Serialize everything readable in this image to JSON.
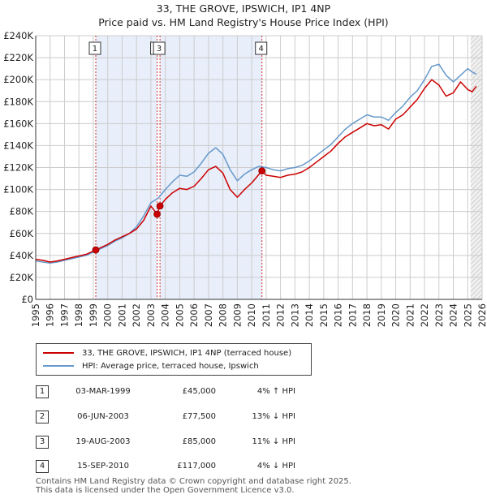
{
  "title_line1": "33, THE GROVE, IPSWICH, IP1 4NP",
  "title_line2": "Price paid vs. HM Land Registry's House Price Index (HPI)",
  "colors": {
    "property": "#cc0000",
    "hpi": "#6699cc",
    "shade": "#e8eefa",
    "grid": "#cccccc",
    "vline": "#cc0000"
  },
  "legend": {
    "property_label": "33, THE GROVE, IPSWICH, IP1 4NP (terraced house)",
    "hpi_label": "HPI: Average price, terraced house, Ipswich"
  },
  "sales": [
    {
      "num": "1",
      "date": "03-MAR-1999",
      "price": "£45,000",
      "hpi_change": "4% ↑ HPI"
    },
    {
      "num": "2",
      "date": "06-JUN-2003",
      "price": "£77,500",
      "hpi_change": "13% ↓ HPI"
    },
    {
      "num": "3",
      "date": "19-AUG-2003",
      "price": "£85,000",
      "hpi_change": "11% ↓ HPI"
    },
    {
      "num": "4",
      "date": "15-SEP-2010",
      "price": "£117,000",
      "hpi_change": "4% ↓ HPI"
    }
  ],
  "footer_line1": "Contains HM Land Registry data © Crown copyright and database right 2025.",
  "footer_line2": "This data is licensed under the Open Government Licence v3.0.",
  "chart_data": {
    "type": "line",
    "title": "33, THE GROVE, IPSWICH, IP1 4NP — Price paid vs. HM Land Registry's House Price Index (HPI)",
    "xlabel": "",
    "ylabel": "",
    "xlim": [
      1995,
      2026
    ],
    "ylim": [
      0,
      240000
    ],
    "x_ticks": [
      1995,
      1996,
      1997,
      1998,
      1999,
      2000,
      2001,
      2002,
      2003,
      2004,
      2005,
      2006,
      2007,
      2008,
      2009,
      2010,
      2011,
      2012,
      2013,
      2014,
      2015,
      2016,
      2017,
      2018,
      2019,
      2020,
      2021,
      2022,
      2023,
      2024,
      2025,
      2026
    ],
    "y_ticks": [
      0,
      20000,
      40000,
      60000,
      80000,
      100000,
      120000,
      140000,
      160000,
      180000,
      200000,
      220000,
      240000
    ],
    "y_tick_labels": [
      "£0",
      "£20K",
      "£40K",
      "£60K",
      "£80K",
      "£100K",
      "£120K",
      "£140K",
      "£160K",
      "£180K",
      "£200K",
      "£220K",
      "£240K"
    ],
    "shaded_ranges": [
      [
        1999.17,
        2003.43
      ],
      [
        2003.63,
        2010.71
      ]
    ],
    "hatched_from": 2025.2,
    "sale_markers": [
      {
        "label": "1",
        "x": 1999.17,
        "y": 45000
      },
      {
        "label": "2",
        "x": 2003.43,
        "y": 77500
      },
      {
        "label": "3",
        "x": 2003.63,
        "y": 85000
      },
      {
        "label": "4",
        "x": 2010.71,
        "y": 117000
      }
    ],
    "series": [
      {
        "name": "33, THE GROVE, IPSWICH, IP1 4NP (terraced house)",
        "color": "#cc0000",
        "x": [
          1995,
          1995.5,
          1996,
          1996.5,
          1997,
          1997.5,
          1998,
          1998.5,
          1999.17,
          1999.5,
          2000,
          2000.5,
          2001,
          2001.5,
          2002,
          2002.5,
          2003,
          2003.43,
          2003.63,
          2004,
          2004.5,
          2005,
          2005.5,
          2006,
          2006.5,
          2007,
          2007.5,
          2008,
          2008.5,
          2009,
          2009.5,
          2010,
          2010.71,
          2011,
          2011.5,
          2012,
          2012.5,
          2013,
          2013.5,
          2014,
          2014.5,
          2015,
          2015.5,
          2016,
          2016.5,
          2017,
          2017.5,
          2018,
          2018.5,
          2019,
          2019.5,
          2020,
          2020.5,
          2021,
          2021.5,
          2022,
          2022.5,
          2023,
          2023.5,
          2024,
          2024.5,
          2025,
          2025.3,
          2025.6
        ],
        "y": [
          36500,
          35500,
          34000,
          35000,
          36500,
          38000,
          39500,
          41000,
          45000,
          47000,
          50000,
          54000,
          57000,
          60000,
          64000,
          72000,
          85000,
          77500,
          85000,
          91000,
          97000,
          101000,
          100000,
          103000,
          110000,
          118000,
          121000,
          115000,
          100000,
          93000,
          100000,
          106000,
          117000,
          113000,
          112000,
          111000,
          113000,
          114000,
          116000,
          120000,
          125000,
          130000,
          135000,
          142000,
          148000,
          152000,
          156000,
          160000,
          158000,
          159000,
          155000,
          164000,
          168000,
          175000,
          182000,
          192000,
          200000,
          195000,
          185000,
          188000,
          198000,
          191000,
          189000,
          194000
        ]
      },
      {
        "name": "HPI: Average price, terraced house, Ipswich",
        "color": "#6699cc",
        "x": [
          1995,
          1995.5,
          1996,
          1996.5,
          1997,
          1997.5,
          1998,
          1998.5,
          1999,
          1999.5,
          2000,
          2000.5,
          2001,
          2001.5,
          2002,
          2002.5,
          2003,
          2003.5,
          2004,
          2004.5,
          2005,
          2005.5,
          2006,
          2006.5,
          2007,
          2007.5,
          2008,
          2008.5,
          2009,
          2009.5,
          2010,
          2010.5,
          2011,
          2011.5,
          2012,
          2012.5,
          2013,
          2013.5,
          2014,
          2014.5,
          2015,
          2015.5,
          2016,
          2016.5,
          2017,
          2017.5,
          2018,
          2018.5,
          2019,
          2019.5,
          2020,
          2020.5,
          2021,
          2021.5,
          2022,
          2022.5,
          2023,
          2023.5,
          2024,
          2024.5,
          2025,
          2025.3,
          2025.6
        ],
        "y": [
          35000,
          34000,
          33000,
          34000,
          35500,
          37000,
          38500,
          40000,
          43000,
          46000,
          49000,
          53000,
          56000,
          60000,
          66000,
          76000,
          88000,
          92000,
          100000,
          107000,
          113000,
          112000,
          116000,
          124000,
          133000,
          138000,
          132000,
          118000,
          108000,
          114000,
          118000,
          121000,
          120000,
          118000,
          117000,
          119000,
          120000,
          122000,
          126000,
          131000,
          136000,
          141000,
          148000,
          155000,
          160000,
          164000,
          168000,
          166000,
          166000,
          163000,
          170000,
          176000,
          184000,
          190000,
          200000,
          212000,
          214000,
          204000,
          198000,
          204000,
          210000,
          207000,
          205000
        ]
      }
    ]
  }
}
